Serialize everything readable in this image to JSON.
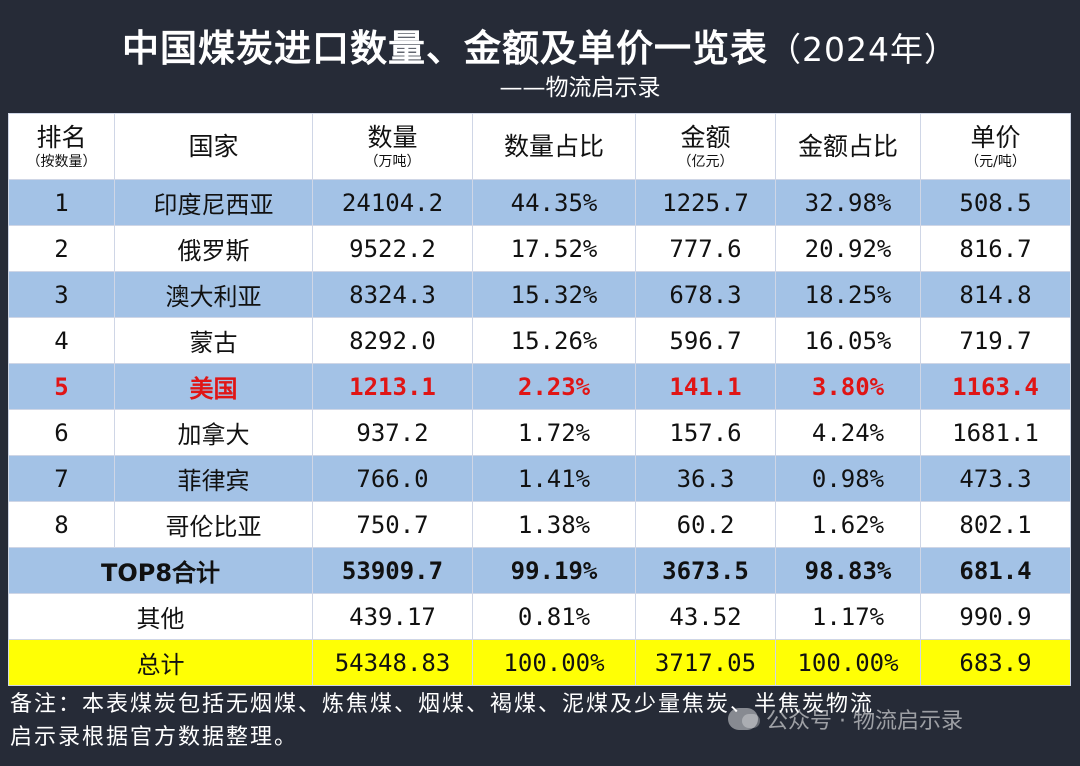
{
  "header": {
    "title": "中国煤炭进口数量、金额及单价一览表",
    "year": "（2024年）",
    "subtitle": "——物流启示录"
  },
  "columns": [
    {
      "main": "排名",
      "sub": "（按数量）"
    },
    {
      "main": "国家",
      "sub": ""
    },
    {
      "main": "数量",
      "sub": "（万吨）"
    },
    {
      "main": "数量占比",
      "sub": ""
    },
    {
      "main": "金额",
      "sub": "（亿元）"
    },
    {
      "main": "金额占比",
      "sub": ""
    },
    {
      "main": "单价",
      "sub": "（元/吨）"
    }
  ],
  "rows": [
    {
      "rank": "1",
      "country": "印度尼西亚",
      "qty": "24104.2",
      "qty_pct": "44.35%",
      "amt": "1225.7",
      "amt_pct": "32.98%",
      "price": "508.5"
    },
    {
      "rank": "2",
      "country": "俄罗斯",
      "qty": "9522.2",
      "qty_pct": "17.52%",
      "amt": "777.6",
      "amt_pct": "20.92%",
      "price": "816.7"
    },
    {
      "rank": "3",
      "country": "澳大利亚",
      "qty": "8324.3",
      "qty_pct": "15.32%",
      "amt": "678.3",
      "amt_pct": "18.25%",
      "price": "814.8"
    },
    {
      "rank": "4",
      "country": "蒙古",
      "qty": "8292.0",
      "qty_pct": "15.26%",
      "amt": "596.7",
      "amt_pct": "16.05%",
      "price": "719.7"
    },
    {
      "rank": "5",
      "country": "美国",
      "qty": "1213.1",
      "qty_pct": "2.23%",
      "amt": "141.1",
      "amt_pct": "3.80%",
      "price": "1163.4"
    },
    {
      "rank": "6",
      "country": "加拿大",
      "qty": "937.2",
      "qty_pct": "1.72%",
      "amt": "157.6",
      "amt_pct": "4.24%",
      "price": "1681.1"
    },
    {
      "rank": "7",
      "country": "菲律宾",
      "qty": "766.0",
      "qty_pct": "1.41%",
      "amt": "36.3",
      "amt_pct": "0.98%",
      "price": "473.3"
    },
    {
      "rank": "8",
      "country": "哥伦比亚",
      "qty": "750.7",
      "qty_pct": "1.38%",
      "amt": "60.2",
      "amt_pct": "1.62%",
      "price": "802.1"
    }
  ],
  "top8": {
    "label": "TOP8合计",
    "qty": "53909.7",
    "qty_pct": "99.19%",
    "amt": "3673.5",
    "amt_pct": "98.83%",
    "price": "681.4"
  },
  "other": {
    "label": "其他",
    "qty": "439.17",
    "qty_pct": "0.81%",
    "amt": "43.52",
    "amt_pct": "1.17%",
    "price": "990.9"
  },
  "total": {
    "label": "总计",
    "qty": "54348.83",
    "qty_pct": "100.00%",
    "amt": "3717.05",
    "amt_pct": "100.00%",
    "price": "683.9"
  },
  "note": {
    "line1": "备注：本表煤炭包括无烟煤、炼焦煤、烟煤、褐煤、泥煤及少量焦炭、半焦炭物流",
    "line2": "启示录根据官方数据整理。"
  },
  "watermark": {
    "text": "公众号 · 物流启示录",
    "icon": "wechat-icon"
  },
  "colors": {
    "background": "#262b37",
    "row_blue": "#a3c2e6",
    "highlight_red": "#e01515",
    "total_yellow": "#ffff05"
  }
}
